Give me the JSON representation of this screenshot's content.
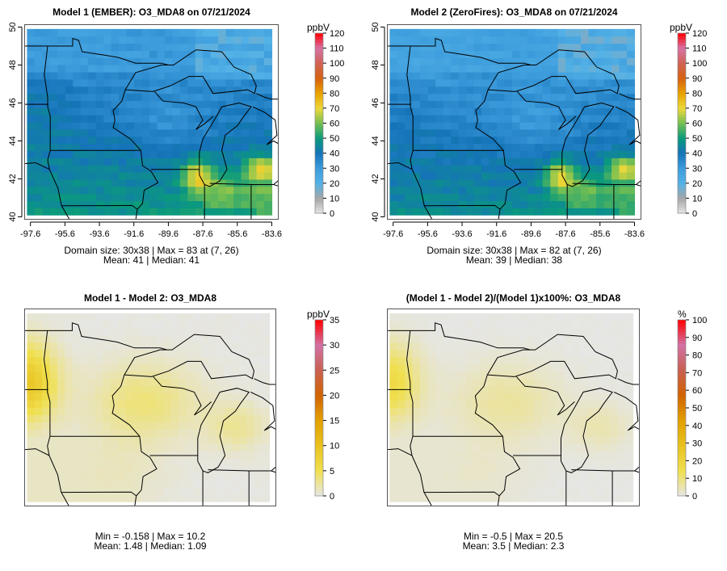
{
  "panels": [
    {
      "title": "Model 1 (EMBER): O3_MDA8 on 07/21/2024",
      "stats_line1": "Domain size: 30x38 | Max = 83 at (7, 26)",
      "stats_line2": "Mean: 41 |  Median: 41",
      "unit": "ppbV",
      "field": "model1",
      "colorbar_ticks": [
        "0",
        "10",
        "20",
        "30",
        "40",
        "50",
        "60",
        "70",
        "80",
        "90",
        "100",
        "110",
        "120"
      ],
      "colorbar_max": 120,
      "show_axes": true
    },
    {
      "title": "Model 2 (ZeroFires): O3_MDA8 on 07/21/2024",
      "stats_line1": "Domain size: 30x38 | Max = 82 at (7, 26)",
      "stats_line2": "Mean: 39 |  Median: 38",
      "unit": "ppbV",
      "field": "model2",
      "colorbar_ticks": [
        "0",
        "10",
        "20",
        "30",
        "40",
        "50",
        "60",
        "70",
        "80",
        "90",
        "100",
        "110",
        "120"
      ],
      "colorbar_max": 120,
      "show_axes": true
    },
    {
      "title": "Model 1 - Model 2: O3_MDA8",
      "stats_line1": "Min = -0.158 | Max = 10.2",
      "stats_line2": "Mean: 1.48 |  Median: 1.09",
      "unit": "ppbV",
      "field": "diff",
      "colorbar_ticks": [
        "0",
        "5",
        "10",
        "15",
        "20",
        "25",
        "30",
        "35"
      ],
      "colorbar_max": 35,
      "show_axes": false
    },
    {
      "title": "(Model 1 - Model 2)/(Model 1)x100%: O3_MDA8",
      "stats_line1": "Min = -0.5 | Max = 20.5",
      "stats_line2": "Mean: 3.5 |  Median: 2.3",
      "unit": "%",
      "field": "pct",
      "colorbar_ticks": [
        "0",
        "10",
        "20",
        "30",
        "40",
        "50",
        "60",
        "70",
        "80",
        "90",
        "100"
      ],
      "colorbar_max": 100,
      "show_axes": false
    }
  ],
  "axes": {
    "lat_ticks": [
      "40",
      "42",
      "44",
      "46",
      "48",
      "50"
    ],
    "lon_ticks": [
      "-97.6",
      "-95.6",
      "-93.6",
      "-91.6",
      "-89.6",
      "-87.6",
      "-85.6",
      "-83.6"
    ]
  },
  "colors": {
    "o3_scale": [
      "#e6e6e6",
      "#a6a6a6",
      "#54b2e6",
      "#3d9cdc",
      "#1573b8",
      "#0a9a7c",
      "#74bf52",
      "#ecd83a",
      "#e9a200",
      "#d66210",
      "#d06455",
      "#d672a6",
      "#ff0000"
    ],
    "diff_scale": [
      "#e6e6e6",
      "#f0e050",
      "#e9c220",
      "#e2a000",
      "#d26400",
      "#c86052",
      "#d272a4",
      "#ff0000"
    ],
    "boundary": "#000000"
  }
}
